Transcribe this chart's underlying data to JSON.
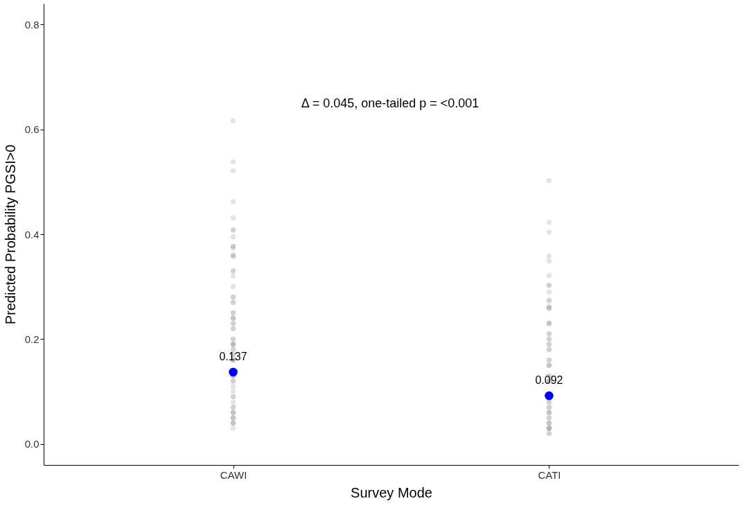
{
  "chart_data": {
    "type": "scatter",
    "xlabel": "Survey Mode",
    "ylabel": "Predicted Probability PGSI>0",
    "categories": [
      "CAWI",
      "CATI"
    ],
    "ylim": [
      -0.04,
      0.84
    ],
    "yticks": [
      {
        "value": 0,
        "label": "0.0"
      },
      0.2,
      0.4,
      0.6,
      0.8
    ],
    "grid": false,
    "legend": false,
    "annotations": [
      "Δ = 0.045, one-tailed p = <0.001"
    ],
    "series": [
      {
        "color": "#a6a6a6",
        "x": [
          "CAWI",
          "CAWI",
          "CAWI",
          "CAWI",
          "CAWI",
          "CAWI",
          "CAWI",
          "CAWI",
          "CAWI",
          "CAWI",
          "CAWI",
          "CAWI",
          "CAWI",
          "CAWI",
          "CAWI",
          "CAWI",
          "CAWI",
          "CAWI",
          "CAWI",
          "CAWI",
          "CAWI",
          "CAWI",
          "CAWI",
          "CAWI",
          "CAWI",
          "CAWI",
          "CAWI",
          "CAWI",
          "CAWI",
          "CAWI",
          "CAWI",
          "CAWI",
          "CAWI",
          "CAWI",
          "CAWI",
          "CAWI",
          "CAWI",
          "CAWI",
          "CAWI",
          "CAWI",
          "CAWI",
          "CAWI",
          "CAWI",
          "CAWI",
          "CAWI",
          "CAWI",
          "CAWI",
          "CAWI",
          "CAWI",
          "CAWI",
          "CAWI",
          "CAWI",
          "CAWI",
          "CAWI",
          "CAWI",
          "CAWI",
          "CAWI",
          "CAWI",
          "CAWI",
          "CAWI",
          "CAWI",
          "CAWI",
          "CAWI",
          "CAWI",
          "CAWI",
          "CAWI",
          "CATI",
          "CATI",
          "CATI",
          "CATI",
          "CATI",
          "CATI",
          "CATI",
          "CATI",
          "CATI",
          "CATI",
          "CATI",
          "CATI",
          "CATI",
          "CATI",
          "CATI",
          "CATI",
          "CATI",
          "CATI",
          "CATI",
          "CATI",
          "CATI",
          "CATI",
          "CATI",
          "CATI",
          "CATI",
          "CATI",
          "CATI",
          "CATI",
          "CATI",
          "CATI",
          "CATI",
          "CATI",
          "CATI",
          "CATI",
          "CATI",
          "CATI",
          "CATI",
          "CATI",
          "CATI",
          "CATI",
          "CATI",
          "CATI",
          "CATI",
          "CATI",
          "CATI",
          "CATI",
          "CATI",
          "CATI",
          "CATI",
          "CATI",
          "CATI",
          "CATI",
          "CATI",
          "CATI",
          "CATI"
        ],
        "values": [
          0.616,
          0.538,
          0.521,
          0.462,
          0.431,
          0.395,
          0.408,
          0.408,
          0.374,
          0.377,
          0.377,
          0.358,
          0.358,
          0.361,
          0.05,
          0.06,
          0.04,
          0.07,
          0.05,
          0.06,
          0.04,
          0.07,
          0.05,
          0.06,
          0.09,
          0.1,
          0.08,
          0.11,
          0.09,
          0.13,
          0.13,
          0.12,
          0.13,
          0.12,
          0.16,
          0.17,
          0.16,
          0.17,
          0.16,
          0.19,
          0.19,
          0.2,
          0.18,
          0.19,
          0.2,
          0.18,
          0.19,
          0.22,
          0.23,
          0.22,
          0.23,
          0.24,
          0.25,
          0.24,
          0.25,
          0.24,
          0.27,
          0.28,
          0.27,
          0.28,
          0.3,
          0.32,
          0.33,
          0.33,
          0.03,
          0.04,
          0.502,
          0.423,
          0.404,
          0.358,
          0.349,
          0.303,
          0.321,
          0.29,
          0.302,
          0.275,
          0.272,
          0.26,
          0.26,
          0.262,
          0.258,
          0.03,
          0.04,
          0.03,
          0.05,
          0.03,
          0.04,
          0.03,
          0.05,
          0.03,
          0.04,
          0.06,
          0.07,
          0.06,
          0.07,
          0.06,
          0.08,
          0.08,
          0.12,
          0.12,
          0.13,
          0.12,
          0.13,
          0.15,
          0.16,
          0.15,
          0.16,
          0.15,
          0.18,
          0.19,
          0.18,
          0.19,
          0.21,
          0.2,
          0.21,
          0.2,
          0.23,
          0.23,
          0.23,
          0.02,
          0.02
        ]
      },
      {
        "color": "#0000ff",
        "x": [
          "CAWI",
          "CATI"
        ],
        "values": [
          0.137,
          0.092
        ],
        "value_labels": [
          "0.137",
          "0.092"
        ]
      }
    ]
  }
}
